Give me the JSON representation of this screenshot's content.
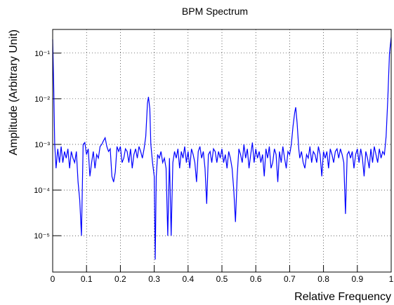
{
  "chart_data": {
    "type": "line",
    "title": "BPM Spectrum",
    "x_label": "Relative Frequency",
    "y_label": "Amplitude (Arbitrary Unit)",
    "log_y": true,
    "grid": true,
    "xlim": [
      0,
      1
    ],
    "xticks": [
      0,
      0.1,
      0.2,
      0.3,
      0.4,
      0.5,
      0.6,
      0.7,
      0.8,
      0.9,
      1
    ],
    "ylim": [
      1.6e-06,
      0.33
    ],
    "yticks": [
      {
        "value": 1e-05,
        "label": "10⁻⁵"
      },
      {
        "value": 0.0001,
        "label": "10⁻⁴"
      },
      {
        "value": 0.001,
        "label": "10⁻³"
      },
      {
        "value": 0.01,
        "label": "10⁻²"
      },
      {
        "value": 0.1,
        "label": "10⁻¹"
      }
    ],
    "series": [
      {
        "color": "#0000ff",
        "x": [
          0,
          0.003,
          0.006,
          0.01,
          0.015,
          0.02,
          0.025,
          0.03,
          0.035,
          0.04,
          0.045,
          0.05,
          0.055,
          0.06,
          0.065,
          0.07,
          0.075,
          0.08,
          0.085,
          0.09,
          0.095,
          0.1,
          0.105,
          0.11,
          0.115,
          0.12,
          0.125,
          0.13,
          0.135,
          0.14,
          0.145,
          0.15,
          0.155,
          0.16,
          0.165,
          0.17,
          0.175,
          0.18,
          0.185,
          0.19,
          0.195,
          0.2,
          0.205,
          0.21,
          0.215,
          0.22,
          0.225,
          0.23,
          0.235,
          0.24,
          0.245,
          0.25,
          0.255,
          0.26,
          0.265,
          0.27,
          0.275,
          0.28,
          0.283,
          0.287,
          0.29,
          0.295,
          0.3,
          0.303,
          0.306,
          0.31,
          0.315,
          0.32,
          0.325,
          0.33,
          0.335,
          0.34,
          0.345,
          0.35,
          0.355,
          0.36,
          0.365,
          0.37,
          0.375,
          0.38,
          0.385,
          0.39,
          0.395,
          0.4,
          0.405,
          0.41,
          0.415,
          0.42,
          0.425,
          0.43,
          0.435,
          0.44,
          0.445,
          0.45,
          0.455,
          0.46,
          0.465,
          0.47,
          0.475,
          0.48,
          0.485,
          0.49,
          0.495,
          0.5,
          0.505,
          0.51,
          0.515,
          0.52,
          0.525,
          0.53,
          0.535,
          0.54,
          0.545,
          0.55,
          0.555,
          0.56,
          0.565,
          0.57,
          0.575,
          0.58,
          0.585,
          0.59,
          0.595,
          0.6,
          0.605,
          0.61,
          0.615,
          0.62,
          0.625,
          0.63,
          0.635,
          0.64,
          0.645,
          0.65,
          0.655,
          0.66,
          0.665,
          0.67,
          0.675,
          0.68,
          0.685,
          0.69,
          0.695,
          0.7,
          0.705,
          0.71,
          0.715,
          0.718,
          0.722,
          0.727,
          0.73,
          0.735,
          0.74,
          0.745,
          0.75,
          0.755,
          0.76,
          0.765,
          0.77,
          0.775,
          0.78,
          0.785,
          0.79,
          0.795,
          0.8,
          0.805,
          0.81,
          0.815,
          0.82,
          0.825,
          0.83,
          0.835,
          0.84,
          0.845,
          0.85,
          0.855,
          0.86,
          0.865,
          0.87,
          0.875,
          0.88,
          0.885,
          0.89,
          0.895,
          0.9,
          0.905,
          0.91,
          0.915,
          0.92,
          0.925,
          0.93,
          0.935,
          0.94,
          0.945,
          0.95,
          0.955,
          0.96,
          0.965,
          0.97,
          0.975,
          0.98,
          0.985,
          0.99,
          0.995,
          1
        ],
        "values": [
          0.2,
          0.02,
          0.001,
          0.0003,
          0.0008,
          0.0004,
          0.0009,
          0.0004,
          0.0007,
          0.0005,
          0.0008,
          0.0003,
          0.0007,
          0.0005,
          0.0004,
          0.0007,
          0.00015,
          6e-05,
          1e-05,
          0.001,
          0.0011,
          0.0006,
          0.0008,
          0.0002,
          0.0004,
          0.0007,
          0.0003,
          0.0006,
          0.0005,
          0.0009,
          0.001,
          0.0012,
          0.0014,
          0.0009,
          0.0007,
          0.0008,
          0.0002,
          0.00015,
          0.00025,
          0.0009,
          0.0007,
          0.0009,
          0.0004,
          0.0005,
          0.0008,
          0.0007,
          0.0004,
          0.0008,
          0.0003,
          0.0006,
          0.0008,
          0.0005,
          0.0009,
          0.0007,
          0.0005,
          0.0008,
          0.0015,
          0.008,
          0.011,
          0.006,
          0.001,
          0.0004,
          0.0002,
          3e-06,
          0.0002,
          0.0006,
          0.0005,
          0.0007,
          0.0004,
          0.0005,
          0.0003,
          1e-05,
          0.0005,
          1e-05,
          0.0004,
          0.0007,
          0.0005,
          0.0008,
          0.0003,
          0.0007,
          0.0005,
          0.0009,
          0.0004,
          0.0007,
          0.0003,
          0.0008,
          0.0006,
          0.0004,
          0.00015,
          0.0007,
          0.0009,
          0.0005,
          0.0007,
          0.0003,
          5e-05,
          0.0006,
          0.0007,
          0.0004,
          0.0008,
          0.0007,
          0.0004,
          0.0007,
          0.0005,
          0.0008,
          0.0004,
          0.0006,
          0.0003,
          0.0007,
          0.0005,
          0.0003,
          0.0001,
          2e-05,
          0.0002,
          0.0008,
          0.0006,
          0.0004,
          0.001,
          0.0005,
          0.0008,
          0.0003,
          0.0006,
          0.0011,
          0.0004,
          0.0008,
          0.0005,
          0.0007,
          0.0004,
          0.0006,
          0.0002,
          0.0008,
          0.0005,
          0.0009,
          0.0003,
          0.0004,
          0.0008,
          0.0006,
          0.00015,
          0.0007,
          0.0004,
          0.0009,
          0.0005,
          0.0003,
          0.0007,
          0.0006,
          0.001,
          0.0025,
          0.005,
          0.0065,
          0.003,
          0.0008,
          0.0005,
          0.0007,
          0.0004,
          0.0003,
          0.0006,
          0.0005,
          0.0009,
          0.0004,
          0.0007,
          0.0006,
          0.0004,
          0.0009,
          0.0006,
          0.0002,
          0.0007,
          0.0005,
          0.0007,
          0.0003,
          0.0008,
          0.0006,
          0.0004,
          0.0007,
          0.0008,
          0.0005,
          0.0008,
          0.0006,
          0.0004,
          3e-05,
          0.0006,
          0.0007,
          0.0005,
          0.0007,
          0.0003,
          0.0006,
          0.0008,
          0.0004,
          0.0008,
          0.0005,
          0.0002,
          0.0007,
          0.0005,
          0.0003,
          0.0008,
          0.0004,
          0.0009,
          0.0006,
          0.0004,
          0.0008,
          0.0005,
          0.0007,
          0.0006,
          0.0015,
          0.01,
          0.1,
          0.22
        ]
      }
    ]
  }
}
